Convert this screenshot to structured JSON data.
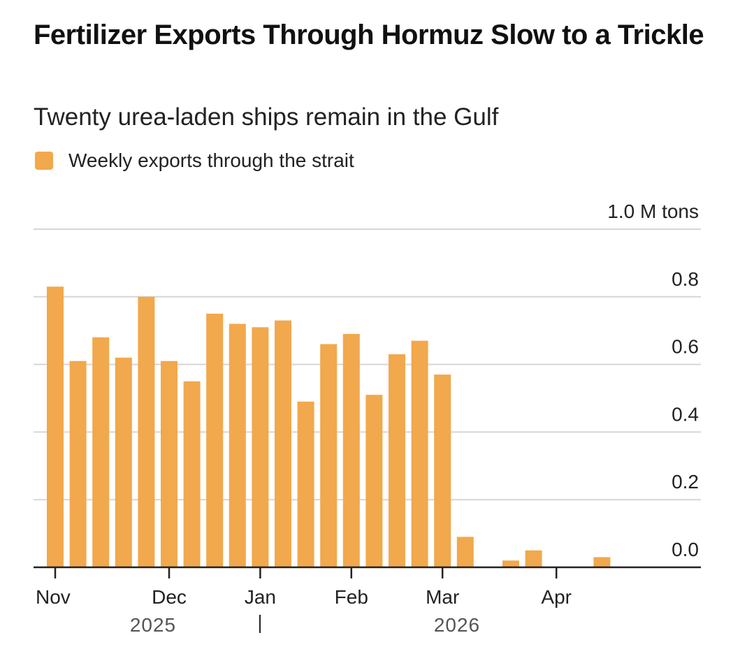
{
  "header": {
    "title": "Fertilizer Exports Through Hormuz Slow to a Trickle",
    "subtitle": "Twenty urea-laden ships remain in the Gulf"
  },
  "colors": {
    "bar": "#F2A84C",
    "grid": "#d6d6d6",
    "axis": "#222222"
  },
  "chart_data": {
    "type": "bar",
    "title": "Fertilizer Exports Through Hormuz Slow to a Trickle",
    "subtitle": "Twenty urea-laden ships remain in the Gulf",
    "legend": {
      "position": "top-left",
      "entries": [
        "Weekly exports through the strait"
      ]
    },
    "series": [
      {
        "name": "Weekly exports through the strait",
        "values": [
          0.83,
          0.61,
          0.68,
          0.62,
          0.8,
          0.61,
          0.55,
          0.75,
          0.72,
          0.71,
          0.73,
          0.49,
          0.66,
          0.69,
          0.51,
          0.63,
          0.67,
          0.57,
          0.09,
          0,
          0.02,
          0.05,
          0,
          0,
          0.03
        ]
      }
    ],
    "x_ticks": [
      "Nov",
      "Dec",
      "Jan",
      "Feb",
      "Mar",
      "Apr"
    ],
    "x_tick_week_index": [
      0,
      5,
      9,
      13,
      17,
      22
    ],
    "year_labels": [
      "2025",
      "2026"
    ],
    "y_ticks": [
      "0.0",
      "0.2",
      "0.4",
      "0.6",
      "0.8",
      "1.0 M tons"
    ],
    "y_tick_values": [
      0,
      0.2,
      0.4,
      0.6,
      0.8,
      1.0
    ],
    "ylabel": "",
    "ylim": [
      0,
      1.0
    ],
    "grid": true
  }
}
